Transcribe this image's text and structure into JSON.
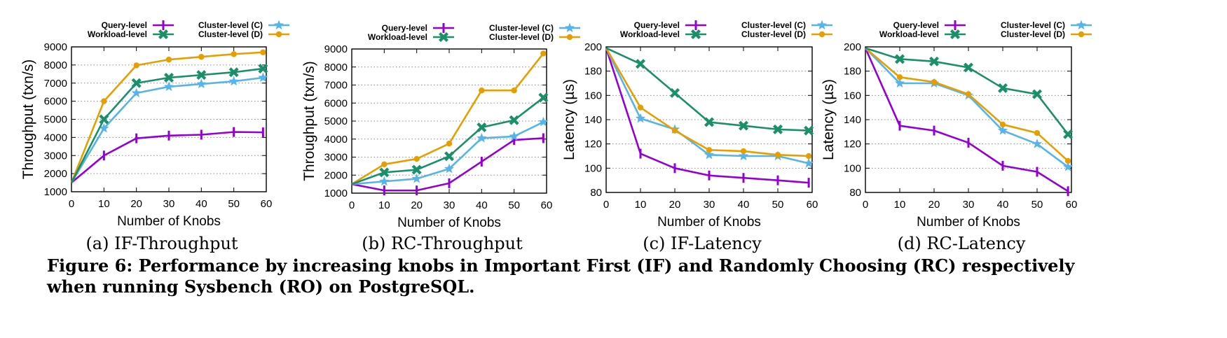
{
  "figure": {
    "caption_line1": "Figure 6: Performance by increasing knobs in Important First (IF) and Randomly Choosing (RC) respectively",
    "caption_line2": "when running Sysbench (RO) on PostgreSQL."
  },
  "colors": {
    "query": "#9400d3",
    "workload": "#1a8f6a",
    "cluster_c": "#56b4e9",
    "cluster_d": "#e69f00",
    "grid": "#8c8c8c"
  },
  "chart_data": [
    {
      "type": "line",
      "subcaption": "(a) IF-Throughput",
      "xlabel": "Number of Knobs",
      "ylabel": "Throughput (txn/s)",
      "xlim": [
        0,
        60
      ],
      "ylim": [
        1000,
        9000
      ],
      "x_ticks": [
        0,
        10,
        20,
        30,
        40,
        50,
        60
      ],
      "y_ticks": [
        1000,
        2000,
        3000,
        4000,
        5000,
        6000,
        7000,
        8000,
        9000
      ],
      "legend_position": "top",
      "grid": "horizontal dotted",
      "x": [
        0,
        10,
        20,
        30,
        40,
        50,
        59
      ],
      "series": [
        {
          "name": "Query-level",
          "key": "query",
          "values": [
            1500,
            3000,
            3950,
            4100,
            4150,
            4300,
            4280
          ]
        },
        {
          "name": "Workload-level",
          "key": "workload",
          "values": [
            1500,
            5000,
            7000,
            7300,
            7450,
            7600,
            7800
          ]
        },
        {
          "name": "Cluster-level (C)",
          "key": "cluster_c",
          "values": [
            1500,
            4500,
            6450,
            6800,
            6950,
            7100,
            7300
          ]
        },
        {
          "name": "Cluster-level (D)",
          "key": "cluster_d",
          "values": [
            1500,
            6000,
            7980,
            8300,
            8450,
            8600,
            8700
          ]
        }
      ]
    },
    {
      "type": "line",
      "subcaption": "(b) RC-Throughput",
      "xlabel": "Number of Knobs",
      "ylabel": "Throughput (txn/s)",
      "xlim": [
        0,
        60
      ],
      "ylim": [
        1000,
        9000
      ],
      "x_ticks": [
        0,
        10,
        20,
        30,
        40,
        50,
        60
      ],
      "y_ticks": [
        1000,
        2000,
        3000,
        4000,
        5000,
        6000,
        7000,
        8000,
        9000
      ],
      "legend_position": "top",
      "grid": "horizontal dotted",
      "x": [
        0,
        10,
        20,
        30,
        40,
        50,
        59
      ],
      "series": [
        {
          "name": "Query-level",
          "key": "query",
          "values": [
            1500,
            1150,
            1150,
            1550,
            2750,
            3950,
            4050
          ]
        },
        {
          "name": "Workload-level",
          "key": "workload",
          "values": [
            1500,
            2150,
            2300,
            3050,
            4650,
            5050,
            6300
          ]
        },
        {
          "name": "Cluster-level (C)",
          "key": "cluster_c",
          "values": [
            1500,
            1650,
            1800,
            2350,
            4050,
            4150,
            4950
          ]
        },
        {
          "name": "Cluster-level (D)",
          "key": "cluster_d",
          "values": [
            1500,
            2600,
            2900,
            3750,
            6700,
            6700,
            8750
          ]
        }
      ]
    },
    {
      "type": "line",
      "subcaption": "(c) IF-Latency",
      "xlabel": "Number of Knobs",
      "ylabel": "Latency (µs)",
      "xlim": [
        0,
        60
      ],
      "ylim": [
        80,
        200
      ],
      "x_ticks": [
        0,
        10,
        20,
        30,
        40,
        50,
        60
      ],
      "y_ticks": [
        80,
        100,
        120,
        140,
        160,
        180,
        200
      ],
      "legend_position": "top",
      "grid": "horizontal dotted",
      "x": [
        0,
        10,
        20,
        30,
        40,
        50,
        59
      ],
      "series": [
        {
          "name": "Query-level",
          "key": "query",
          "values": [
            199,
            112,
            100,
            94,
            92,
            90,
            88
          ]
        },
        {
          "name": "Workload-level",
          "key": "workload",
          "values": [
            199,
            186,
            162,
            138,
            135,
            132,
            131
          ]
        },
        {
          "name": "Cluster-level (C)",
          "key": "cluster_c",
          "values": [
            199,
            141,
            132,
            111,
            110,
            110,
            104
          ]
        },
        {
          "name": "Cluster-level (D)",
          "key": "cluster_d",
          "values": [
            199,
            150,
            131,
            115,
            114,
            111,
            110
          ]
        }
      ]
    },
    {
      "type": "line",
      "subcaption": "(d) RC-Latency",
      "xlabel": "Number of Knobs",
      "ylabel": "Latency (µs)",
      "xlim": [
        0,
        60
      ],
      "ylim": [
        80,
        200
      ],
      "x_ticks": [
        0,
        10,
        20,
        30,
        40,
        50,
        60
      ],
      "y_ticks": [
        80,
        100,
        120,
        140,
        160,
        180,
        200
      ],
      "legend_position": "top",
      "grid": "horizontal dotted",
      "x": [
        0,
        10,
        20,
        30,
        40,
        50,
        59
      ],
      "series": [
        {
          "name": "Query-level",
          "key": "query",
          "values": [
            199,
            135,
            131,
            121,
            102,
            97,
            81
          ]
        },
        {
          "name": "Workload-level",
          "key": "workload",
          "values": [
            199,
            190,
            188,
            183,
            166,
            161,
            128
          ]
        },
        {
          "name": "Cluster-level (C)",
          "key": "cluster_c",
          "values": [
            199,
            170,
            170,
            160,
            131,
            120,
            101
          ]
        },
        {
          "name": "Cluster-level (D)",
          "key": "cluster_d",
          "values": [
            199,
            175,
            171,
            161,
            136,
            129,
            106
          ]
        }
      ]
    }
  ]
}
